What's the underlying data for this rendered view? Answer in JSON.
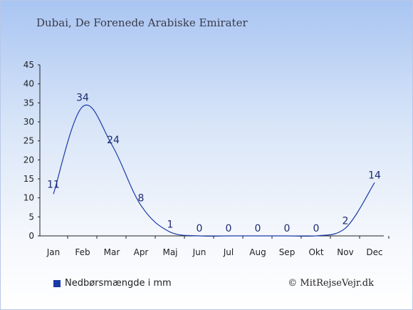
{
  "colors": {
    "series": "#1a3aa8",
    "label": "#1a2a70",
    "axis": "#222222"
  },
  "page": {
    "title": "Dubai, De Forenede Arabiske Emirater",
    "credit": "© MitRejseVejr.dk"
  },
  "chart_data": {
    "type": "line",
    "title": "Dubai, De Forenede Arabiske Emirater",
    "xlabel": "",
    "ylabel": "",
    "categories": [
      "Jan",
      "Feb",
      "Mar",
      "Apr",
      "Maj",
      "Jun",
      "Jul",
      "Aug",
      "Sep",
      "Okt",
      "Nov",
      "Dec"
    ],
    "series": [
      {
        "name": "Nedbørsmængde i mm",
        "values": [
          11,
          34,
          24,
          8,
          1,
          0,
          0,
          0,
          0,
          0,
          2,
          14
        ],
        "labels": [
          "11",
          "34",
          "24",
          "8",
          "1",
          "0",
          "0",
          "0",
          "0",
          "0",
          "2",
          "14"
        ]
      }
    ],
    "yticks": [
      "0",
      "5",
      "10",
      "15",
      "20",
      "25",
      "30",
      "35",
      "40",
      "45"
    ],
    "ylim": [
      0,
      45
    ],
    "grid": false,
    "legend": "bottom-left"
  }
}
